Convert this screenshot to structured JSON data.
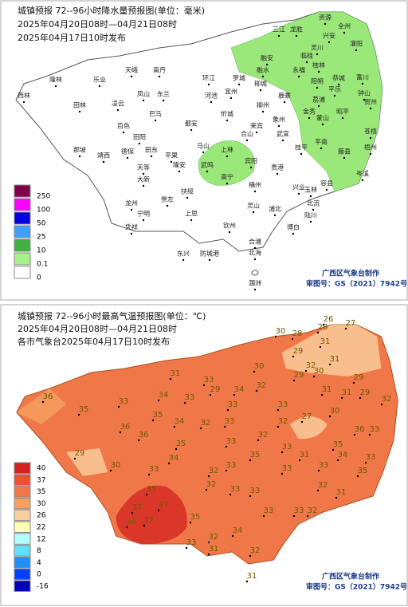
{
  "precip_map": {
    "title": "城镇预报 72--96小时降水量预报图(单位：毫米)",
    "period": "2025年04月20日08时—04月21日08时",
    "issued": "2025年04月17日10时发布",
    "legend": [
      250,
      100,
      50,
      25,
      10,
      0.1,
      0
    ],
    "legend_colors": [
      "#80004a",
      "#ff00ff",
      "#0000e0",
      "#40a0ff",
      "#40b040",
      "#a8f08a",
      "#ffffff"
    ],
    "rain_color": "#9be87a",
    "credit": "广西区气象台制作",
    "approval": "审图号：GS（2021）7942号",
    "cities": [
      "西林",
      "隆林",
      "乐业",
      "天峨",
      "南丹",
      "环江",
      "罗城",
      "融安",
      "三江",
      "龙胜",
      "资源",
      "兴安",
      "全州",
      "灌阳",
      "融水",
      "临桂",
      "桂林",
      "灵川",
      "永福",
      "阳朔",
      "恭城",
      "平乐",
      "钟山",
      "富川",
      "贺州",
      "田林",
      "凌云",
      "凤山",
      "东兰",
      "巴马",
      "都安",
      "河池",
      "宜州",
      "柳城",
      "柳州",
      "鹿寨",
      "象州",
      "金秀",
      "蒙山",
      "昭平",
      "荔浦",
      "苍梧",
      "梧州",
      "藤县",
      "岑溪",
      "平南",
      "桂平",
      "武宣",
      "来宾",
      "忻城",
      "合山",
      "百色",
      "田阳",
      "田东",
      "德保",
      "靖西",
      "那坡",
      "平果",
      "隆安",
      "马山",
      "上林",
      "宾阳",
      "武鸣",
      "南宁",
      "横州",
      "贵港",
      "兴业",
      "玉林",
      "容县",
      "北流",
      "陆川",
      "博白",
      "浦北",
      "灵山",
      "钦州",
      "防城港",
      "东兴",
      "上思",
      "宁明",
      "凭祥",
      "龙州",
      "大新",
      "天等",
      "崇左",
      "扶绥",
      "合浦",
      "北海",
      "涠洲"
    ]
  },
  "temp_map": {
    "title": "城镇预报 72--96小时最高气温预报图(单位：℃)",
    "period": "2025年04月20日08时—04月21日08时",
    "issued": "各市气象台2025年04月17日10时发布",
    "legend": [
      40,
      37,
      35,
      30,
      26,
      22,
      12,
      8,
      4,
      0,
      -16
    ],
    "legend_colors": [
      "#d42020",
      "#ee5030",
      "#f07848",
      "#f5a060",
      "#fbd0a0",
      "#ffffb0",
      "#b0ffff",
      "#60e0ff",
      "#2090ff",
      "#0040ff",
      "#0000c0"
    ],
    "credit": "广西区气象台制作",
    "approval": "审图号：GS（2021）7942号",
    "temperatures": [
      36,
      35,
      29,
      30,
      33,
      36,
      36,
      35,
      34,
      31,
      33,
      33,
      34,
      35,
      33,
      34,
      35,
      37,
      37,
      36,
      37,
      35,
      33,
      32,
      31,
      34,
      32,
      31,
      32,
      30,
      34,
      29,
      33,
      32,
      33,
      33,
      32,
      32,
      33,
      33,
      33,
      35,
      32,
      33,
      32,
      28,
      29,
      28,
      26,
      27,
      31,
      29,
      31,
      30,
      31,
      29,
      32,
      30,
      27,
      33,
      31,
      36,
      35,
      34,
      33,
      33,
      35,
      32,
      33,
      33,
      33,
      31,
      30,
      29,
      31,
      32,
      33,
      32
    ]
  }
}
